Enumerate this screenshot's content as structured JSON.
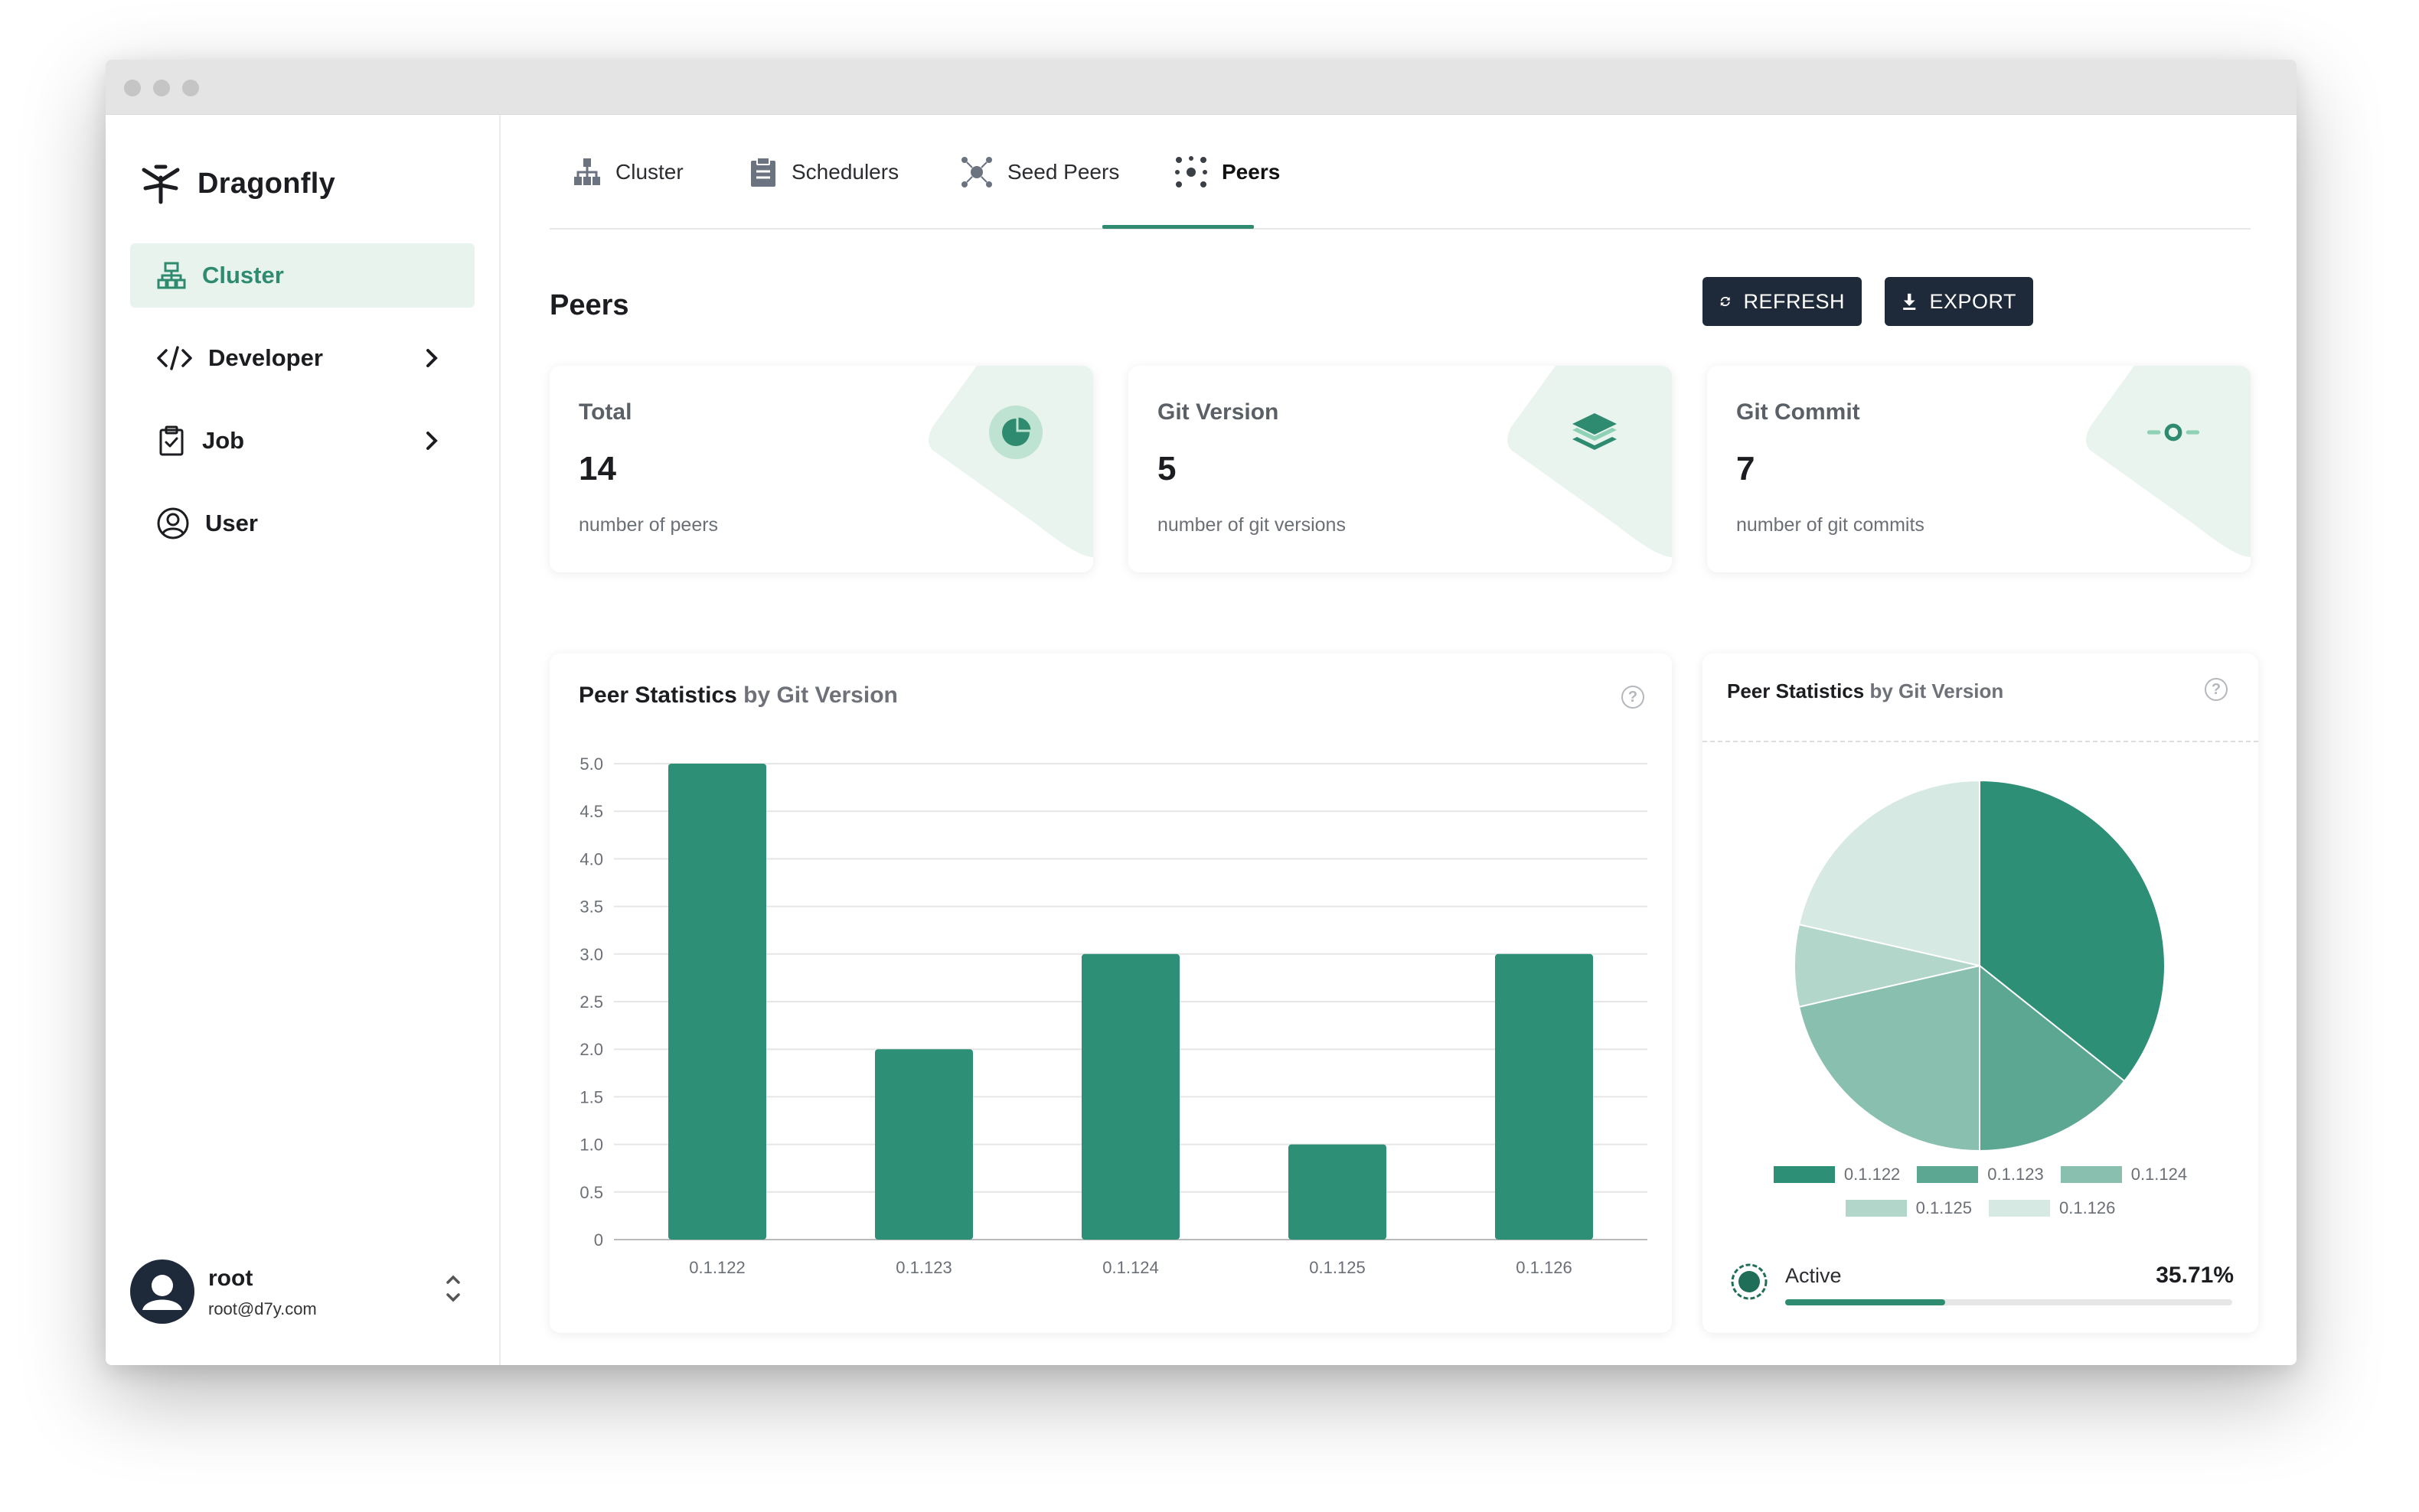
{
  "app": {
    "name": "Dragonfly"
  },
  "sidebar": {
    "items": [
      {
        "label": "Cluster",
        "icon": "cluster-icon",
        "active": true
      },
      {
        "label": "Developer",
        "icon": "code-icon",
        "expandable": true
      },
      {
        "label": "Job",
        "icon": "clipboard-icon",
        "expandable": true
      },
      {
        "label": "User",
        "icon": "user-icon"
      }
    ],
    "user": {
      "name": "root",
      "email": "root@d7y.com"
    }
  },
  "tabs": [
    {
      "label": "Cluster",
      "icon": "cluster-icon"
    },
    {
      "label": "Schedulers",
      "icon": "clipboard-icon"
    },
    {
      "label": "Seed Peers",
      "icon": "seed-peers-icon"
    },
    {
      "label": "Peers",
      "icon": "peers-icon",
      "active": true
    }
  ],
  "page": {
    "title": "Peers"
  },
  "toolbar": {
    "refresh_label": "REFRESH",
    "export_label": "EXPORT"
  },
  "stats": [
    {
      "title": "Total",
      "value": "14",
      "desc": "number of peers",
      "icon": "pie-chart-icon"
    },
    {
      "title": "Git Version",
      "value": "5",
      "desc": "number of git versions",
      "icon": "layers-icon"
    },
    {
      "title": "Git Commit",
      "value": "7",
      "desc": "number of git commits",
      "icon": "commit-icon"
    }
  ],
  "bar_panel": {
    "title": "Peer Statistics",
    "title_muted": "by Git Version"
  },
  "pie_panel": {
    "title": "Peer Statistics",
    "title_muted": "by Git Version"
  },
  "active": {
    "label": "Active",
    "percent": "35.71%",
    "fraction": 0.3571
  },
  "colors": {
    "accent": "#2e8b6f",
    "dark": "#1e2939",
    "pie": [
      "#2e8f77",
      "#5ca792",
      "#89bfae",
      "#b3d6ca",
      "#d7e9e3"
    ]
  },
  "chart_data": [
    {
      "type": "bar",
      "categories": [
        "0.1.122",
        "0.1.123",
        "0.1.124",
        "0.1.125",
        "0.1.126"
      ],
      "values": [
        5,
        2,
        3,
        1,
        3
      ],
      "ylim": [
        0,
        5
      ],
      "yticks": [
        "0",
        "0.5",
        "1.0",
        "1.5",
        "2.0",
        "2.5",
        "3.0",
        "3.5",
        "4.0",
        "4.5",
        "5.0"
      ],
      "grid": true
    },
    {
      "type": "pie",
      "labels": [
        "0.1.122",
        "0.1.123",
        "0.1.124",
        "0.1.125",
        "0.1.126"
      ],
      "values": [
        5,
        2,
        3,
        1,
        3
      ],
      "legend": "bottom"
    }
  ]
}
